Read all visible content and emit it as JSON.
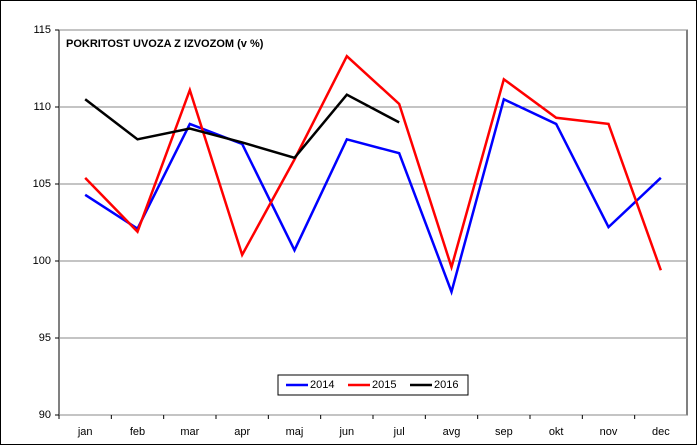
{
  "chart_data": {
    "type": "line",
    "title": "POKRITOST UVOZA Z IZVOZOM (v %)",
    "categories": [
      "jan",
      "feb",
      "mar",
      "apr",
      "maj",
      "jun",
      "jul",
      "avg",
      "sep",
      "okt",
      "nov",
      "dec"
    ],
    "series": [
      {
        "name": "2014",
        "color": "#0000ff",
        "values": [
          104.3,
          102.1,
          108.9,
          107.6,
          100.7,
          107.9,
          107.0,
          98.0,
          110.5,
          108.9,
          102.2,
          105.4
        ]
      },
      {
        "name": "2015",
        "color": "#ff0000",
        "values": [
          105.4,
          101.9,
          111.1,
          100.4,
          106.6,
          113.3,
          110.2,
          99.6,
          111.8,
          109.3,
          108.9,
          99.4
        ]
      },
      {
        "name": "2016",
        "color": "#000000",
        "values": [
          110.5,
          107.9,
          108.6,
          107.7,
          106.7,
          110.8,
          109.0,
          null,
          null,
          null,
          null,
          null
        ]
      }
    ],
    "ylim": [
      90,
      115
    ],
    "yticks": [
      90,
      95,
      100,
      105,
      110,
      115
    ],
    "grid": true,
    "legend": "bottom"
  }
}
